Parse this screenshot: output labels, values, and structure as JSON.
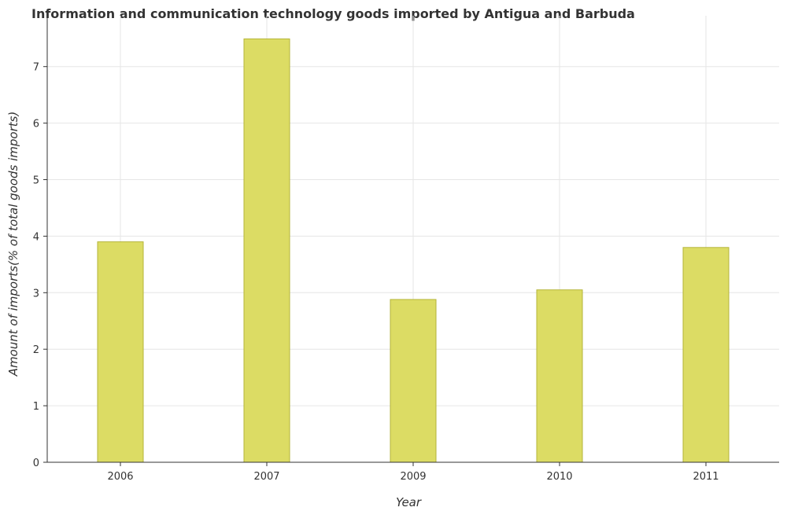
{
  "chart_data": {
    "type": "bar",
    "title": "Information and communication technology goods imported by Antigua and Barbuda",
    "xlabel": "Year",
    "ylabel": "Amount of imports(% of total goods imports)",
    "categories": [
      "2006",
      "2007",
      "2009",
      "2010",
      "2011"
    ],
    "values": [
      3.9,
      7.49,
      2.88,
      3.05,
      3.8
    ],
    "ylim": [
      0,
      7.9
    ],
    "yticks": [
      "0",
      "1",
      "2",
      "3",
      "4",
      "5",
      "6",
      "7"
    ],
    "grid": true,
    "bar_color": "#dcdc64",
    "bar_edge_color": "#b5b53a"
  }
}
